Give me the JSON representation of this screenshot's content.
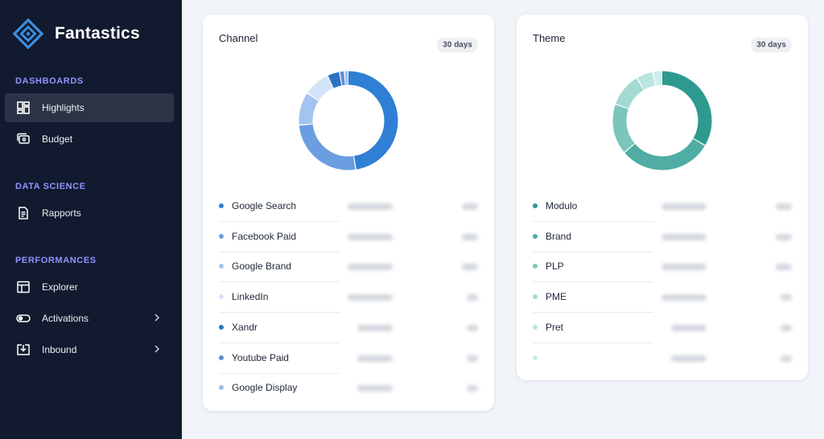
{
  "app": {
    "name": "Fantastics"
  },
  "sidebar": {
    "sections": [
      {
        "title": "DASHBOARDS",
        "items": [
          {
            "label": "Highlights",
            "icon": "dashboard-grid-icon",
            "active": true
          },
          {
            "label": "Budget",
            "icon": "wallet-icon"
          }
        ]
      },
      {
        "title": "DATA SCIENCE",
        "items": [
          {
            "label": "Rapports",
            "icon": "report-document-icon"
          }
        ]
      },
      {
        "title": "PERFORMANCES",
        "items": [
          {
            "label": "Explorer",
            "icon": "table-layout-icon"
          },
          {
            "label": "Activations",
            "icon": "toggle-icon",
            "expandable": true
          },
          {
            "label": "Inbound",
            "icon": "inbox-download-icon",
            "expandable": true
          }
        ]
      }
    ]
  },
  "cards": [
    {
      "title": "Channel",
      "badge": "30 days",
      "colors": {
        "accent": "#2f7fd4"
      },
      "segments": [
        {
          "label": "Google Search",
          "share": 0.452,
          "color": "#2f7fd4"
        },
        {
          "label": "Facebook Paid",
          "share": 0.245,
          "color": "#6a9ee0"
        },
        {
          "label": "Google Brand",
          "share": 0.103,
          "color": "#a2c4ee"
        },
        {
          "label": "LinkedIn",
          "share": 0.082,
          "color": "#d4e4f8"
        },
        {
          "label": "Xandr",
          "share": 0.038,
          "color": "#2b72c2"
        },
        {
          "label": "Youtube Paid",
          "share": 0.015,
          "color": "#5d8ed4"
        },
        {
          "label": "Google Display",
          "share": 0.012,
          "color": "#9cbde6"
        }
      ]
    },
    {
      "title": "Theme",
      "badge": "30 days",
      "colors": {
        "accent": "#2e9a8f"
      },
      "segments": [
        {
          "label": "Modulo",
          "share": 0.335,
          "color": "#2e9a8f"
        },
        {
          "label": "Brand",
          "share": 0.305,
          "color": "#4fada3"
        },
        {
          "label": "PLP",
          "share": 0.165,
          "color": "#7cc5bd"
        },
        {
          "label": "PME",
          "share": 0.11,
          "color": "#a3d9d3"
        },
        {
          "label": "Pret",
          "share": 0.055,
          "color": "#b9e5e1"
        },
        {
          "label": "",
          "share": 0.03,
          "color": "#cdeeeb"
        }
      ]
    }
  ]
}
